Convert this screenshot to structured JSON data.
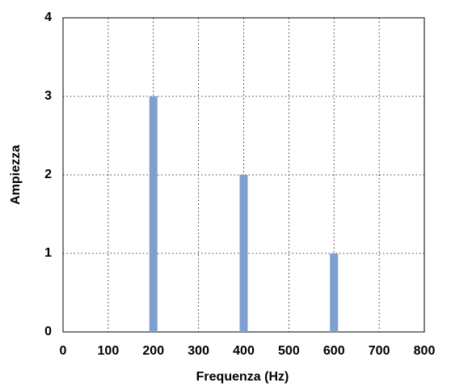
{
  "chart_data": {
    "type": "bar",
    "x": [
      200,
      400,
      600
    ],
    "values": [
      3,
      2,
      1
    ],
    "color": "#7f9fcf",
    "xlabel": "Frequenza (Hz)",
    "ylabel": "Ampiezza",
    "xlim": [
      0,
      800
    ],
    "xticks": [
      0,
      100,
      200,
      300,
      400,
      500,
      600,
      700,
      800
    ],
    "ylim": [
      0,
      4
    ],
    "yticks": [
      0,
      1,
      2,
      3,
      4
    ],
    "grid": true
  }
}
